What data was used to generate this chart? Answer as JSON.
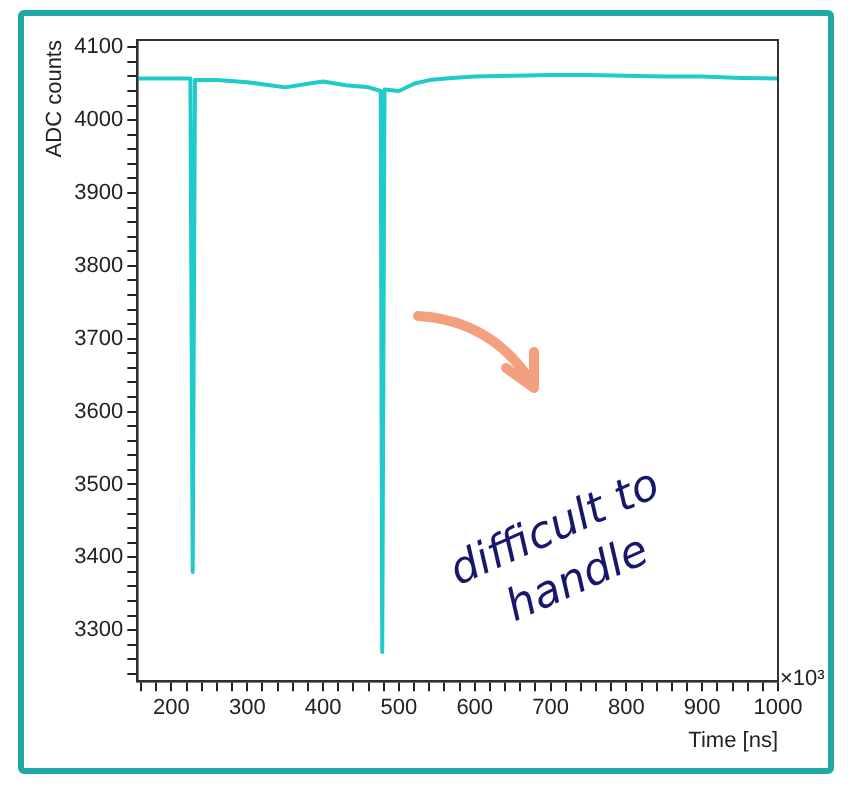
{
  "chart_data": {
    "type": "line",
    "xlabel": "Time [ns]",
    "ylabel": "ADC counts",
    "annotations": [
      "difficult to handle",
      "×10³"
    ],
    "x": [
      155,
      200,
      225,
      228,
      231,
      260,
      300,
      330,
      350,
      380,
      400,
      430,
      460,
      476,
      478,
      481,
      500,
      520,
      540,
      570,
      600,
      650,
      700,
      750,
      800,
      850,
      900,
      950,
      1000
    ],
    "series": [
      {
        "color": "#1fcbc8",
        "values": [
          4057,
          4057,
          4057,
          3380,
          4055,
          4055,
          4052,
          4048,
          4045,
          4050,
          4053,
          4048,
          4045,
          4040,
          3270,
          4042,
          4040,
          4050,
          4055,
          4058,
          4060,
          4061,
          4062,
          4062,
          4061,
          4060,
          4060,
          4058,
          4057
        ]
      }
    ],
    "xlim": [
      155,
      1000
    ],
    "ylim": [
      3230,
      4110
    ],
    "xticks": [
      {
        "value": 160,
        "label": null
      },
      {
        "value": 180,
        "label": null
      },
      200,
      {
        "value": 220,
        "label": null
      },
      {
        "value": 240,
        "label": null
      },
      {
        "value": 260,
        "label": null
      },
      {
        "value": 280,
        "label": null
      },
      300,
      {
        "value": 320,
        "label": null
      },
      {
        "value": 340,
        "label": null
      },
      {
        "value": 360,
        "label": null
      },
      {
        "value": 380,
        "label": null
      },
      400,
      {
        "value": 420,
        "label": null
      },
      {
        "value": 440,
        "label": null
      },
      {
        "value": 460,
        "label": null
      },
      {
        "value": 480,
        "label": null
      },
      500,
      {
        "value": 520,
        "label": null
      },
      {
        "value": 540,
        "label": null
      },
      {
        "value": 560,
        "label": null
      },
      {
        "value": 580,
        "label": null
      },
      600,
      {
        "value": 620,
        "label": null
      },
      {
        "value": 640,
        "label": null
      },
      {
        "value": 660,
        "label": null
      },
      {
        "value": 680,
        "label": null
      },
      700,
      {
        "value": 720,
        "label": null
      },
      {
        "value": 740,
        "label": null
      },
      {
        "value": 760,
        "label": null
      },
      {
        "value": 780,
        "label": null
      },
      800,
      {
        "value": 820,
        "label": null
      },
      {
        "value": 840,
        "label": null
      },
      {
        "value": 860,
        "label": null
      },
      {
        "value": 880,
        "label": null
      },
      900,
      {
        "value": 920,
        "label": null
      },
      {
        "value": 940,
        "label": null
      },
      {
        "value": 960,
        "label": null
      },
      {
        "value": 980,
        "label": null
      },
      1000
    ],
    "yticks": [
      {
        "value": 3240,
        "label": null
      },
      {
        "value": 3260,
        "label": null
      },
      {
        "value": 3280,
        "label": null
      },
      3300,
      {
        "value": 3320,
        "label": null
      },
      {
        "value": 3340,
        "label": null
      },
      {
        "value": 3360,
        "label": null
      },
      {
        "value": 3380,
        "label": null
      },
      3400,
      {
        "value": 3420,
        "label": null
      },
      {
        "value": 3440,
        "label": null
      },
      {
        "value": 3460,
        "label": null
      },
      {
        "value": 3480,
        "label": null
      },
      3500,
      {
        "value": 3520,
        "label": null
      },
      {
        "value": 3540,
        "label": null
      },
      {
        "value": 3560,
        "label": null
      },
      {
        "value": 3580,
        "label": null
      },
      3600,
      {
        "value": 3620,
        "label": null
      },
      {
        "value": 3640,
        "label": null
      },
      {
        "value": 3660,
        "label": null
      },
      {
        "value": 3680,
        "label": null
      },
      3700,
      {
        "value": 3720,
        "label": null
      },
      {
        "value": 3740,
        "label": null
      },
      {
        "value": 3760,
        "label": null
      },
      {
        "value": 3780,
        "label": null
      },
      3800,
      {
        "value": 3820,
        "label": null
      },
      {
        "value": 3840,
        "label": null
      },
      {
        "value": 3860,
        "label": null
      },
      {
        "value": 3880,
        "label": null
      },
      3900,
      {
        "value": 3920,
        "label": null
      },
      {
        "value": 3940,
        "label": null
      },
      {
        "value": 3960,
        "label": null
      },
      {
        "value": 3980,
        "label": null
      },
      4000,
      {
        "value": 4020,
        "label": null
      },
      {
        "value": 4040,
        "label": null
      },
      {
        "value": 4060,
        "label": null
      },
      {
        "value": 4080,
        "label": null
      },
      4100
    ],
    "grid": false,
    "legend": false,
    "marker": "none",
    "line_style": "solid"
  }
}
